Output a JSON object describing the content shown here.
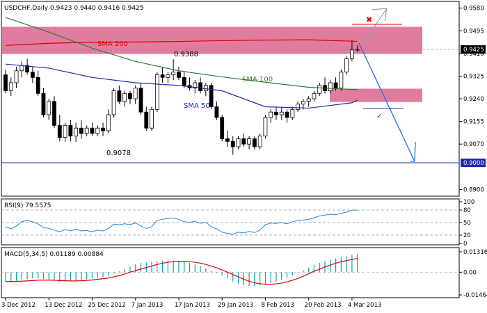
{
  "chart_data": [
    {
      "type": "candlestick",
      "symbol_label": "USDCHF,Daily",
      "ohlc_label": "0.9423 0.9440 0.9416 0.9425",
      "current_price_label": "0.9425",
      "y_ticks": [
        0.89,
        0.8985,
        0.907,
        0.9155,
        0.924,
        0.9325,
        0.941,
        0.9495,
        0.958
      ],
      "y_tick_labels": [
        "0.8900",
        "0.8985",
        "0.9070",
        "0.9155",
        "0.9240",
        "0.9325",
        "0.9410",
        "0.9495",
        "0.9580"
      ],
      "ylim": [
        0.888,
        0.96
      ],
      "x_tick_labels": [
        "3 Dec 2012",
        "13 Dec 2012",
        "25 Dec 2012",
        "7 Jan 2013",
        "17 Jan 2013",
        "29 Jan 2013",
        "8 Feb 2013",
        "20 Feb 2013",
        "4 Mar 2013"
      ],
      "x_tick_index": [
        0,
        8,
        16,
        24,
        32,
        40,
        48,
        56,
        64
      ],
      "candles": [
        [
          0.933,
          0.935,
          0.926,
          0.927
        ],
        [
          0.927,
          0.932,
          0.925,
          0.93
        ],
        [
          0.93,
          0.936,
          0.928,
          0.9345
        ],
        [
          0.9345,
          0.938,
          0.932,
          0.9365
        ],
        [
          0.9365,
          0.939,
          0.933,
          0.934
        ],
        [
          0.934,
          0.936,
          0.93,
          0.932
        ],
        [
          0.932,
          0.9345,
          0.925,
          0.926
        ],
        [
          0.926,
          0.928,
          0.917,
          0.918
        ],
        [
          0.918,
          0.924,
          0.916,
          0.923
        ],
        [
          0.923,
          0.925,
          0.913,
          0.914
        ],
        [
          0.914,
          0.918,
          0.908,
          0.9095
        ],
        [
          0.9095,
          0.915,
          0.908,
          0.914
        ],
        [
          0.914,
          0.916,
          0.908,
          0.91
        ],
        [
          0.91,
          0.915,
          0.9078,
          0.913
        ],
        [
          0.913,
          0.916,
          0.909,
          0.911
        ],
        [
          0.911,
          0.914,
          0.91,
          0.913
        ],
        [
          0.913,
          0.915,
          0.91,
          0.911
        ],
        [
          0.911,
          0.914,
          0.91,
          0.913
        ],
        [
          0.913,
          0.915,
          0.91,
          0.912
        ],
        [
          0.912,
          0.92,
          0.911,
          0.918
        ],
        [
          0.918,
          0.928,
          0.917,
          0.927
        ],
        [
          0.927,
          0.929,
          0.922,
          0.923
        ],
        [
          0.923,
          0.927,
          0.921,
          0.926
        ],
        [
          0.926,
          0.927,
          0.922,
          0.924
        ],
        [
          0.924,
          0.929,
          0.922,
          0.928
        ],
        [
          0.928,
          0.93,
          0.918,
          0.919
        ],
        [
          0.919,
          0.921,
          0.912,
          0.913
        ],
        [
          0.913,
          0.921,
          0.912,
          0.92
        ],
        [
          0.92,
          0.934,
          0.919,
          0.933
        ],
        [
          0.933,
          0.936,
          0.93,
          0.932
        ],
        [
          0.932,
          0.934,
          0.93,
          0.933
        ],
        [
          0.933,
          0.9388,
          0.931,
          0.934
        ],
        [
          0.934,
          0.936,
          0.931,
          0.932
        ],
        [
          0.932,
          0.934,
          0.928,
          0.929
        ],
        [
          0.929,
          0.932,
          0.927,
          0.928
        ],
        [
          0.928,
          0.931,
          0.926,
          0.93
        ],
        [
          0.93,
          0.932,
          0.926,
          0.927
        ],
        [
          0.927,
          0.93,
          0.925,
          0.929
        ],
        [
          0.929,
          0.93,
          0.92,
          0.921
        ],
        [
          0.921,
          0.923,
          0.916,
          0.917
        ],
        [
          0.917,
          0.918,
          0.908,
          0.909
        ],
        [
          0.909,
          0.912,
          0.906,
          0.908
        ],
        [
          0.908,
          0.91,
          0.903,
          0.906
        ],
        [
          0.906,
          0.91,
          0.905,
          0.909
        ],
        [
          0.909,
          0.911,
          0.906,
          0.907
        ],
        [
          0.907,
          0.91,
          0.905,
          0.909
        ],
        [
          0.909,
          0.91,
          0.905,
          0.906
        ],
        [
          0.906,
          0.911,
          0.905,
          0.91
        ],
        [
          0.91,
          0.918,
          0.909,
          0.917
        ],
        [
          0.917,
          0.92,
          0.915,
          0.919
        ],
        [
          0.919,
          0.921,
          0.916,
          0.918
        ],
        [
          0.918,
          0.921,
          0.916,
          0.919
        ],
        [
          0.919,
          0.92,
          0.915,
          0.917
        ],
        [
          0.917,
          0.921,
          0.916,
          0.92
        ],
        [
          0.92,
          0.923,
          0.919,
          0.922
        ],
        [
          0.922,
          0.924,
          0.92,
          0.923
        ],
        [
          0.923,
          0.925,
          0.921,
          0.924
        ],
        [
          0.924,
          0.927,
          0.923,
          0.926
        ],
        [
          0.926,
          0.93,
          0.925,
          0.929
        ],
        [
          0.929,
          0.932,
          0.926,
          0.927
        ],
        [
          0.927,
          0.931,
          0.926,
          0.93
        ],
        [
          0.93,
          0.932,
          0.927,
          0.928
        ],
        [
          0.928,
          0.935,
          0.927,
          0.934
        ],
        [
          0.934,
          0.94,
          0.933,
          0.939
        ],
        [
          0.939,
          0.946,
          0.938,
          0.9423
        ],
        [
          0.9423,
          0.944,
          0.9416,
          0.9425
        ]
      ],
      "series": [
        {
          "name": "SMA 200",
          "color": "#e00000",
          "x": [
            0,
            8,
            16,
            24,
            32,
            40,
            48,
            56,
            64,
            65
          ],
          "values": [
            0.944,
            0.9448,
            0.9452,
            0.9453,
            0.9455,
            0.9458,
            0.946,
            0.9461,
            0.9456,
            0.9455
          ]
        },
        {
          "name": "SMA 100",
          "color": "#2e7d32",
          "x": [
            0,
            8,
            16,
            24,
            32,
            40,
            48,
            56,
            64,
            65
          ],
          "values": [
            0.9545,
            0.949,
            0.943,
            0.938,
            0.9345,
            0.9322,
            0.9302,
            0.9283,
            0.9275,
            0.9275
          ]
        },
        {
          "name": "SMA 50",
          "color": "#1f2aa8",
          "x": [
            0,
            8,
            16,
            24,
            32,
            40,
            48,
            56,
            64,
            65
          ],
          "values": [
            0.937,
            0.9355,
            0.932,
            0.93,
            0.929,
            0.927,
            0.921,
            0.9205,
            0.9225,
            0.9235
          ]
        }
      ],
      "zones": [
        {
          "from": 0.951,
          "to": 0.9408
        },
        {
          "from": 0.9278,
          "to": 0.9228
        }
      ],
      "horizontal_lines": [
        {
          "value": 0.9,
          "label": "0.9000"
        }
      ],
      "annotations": [
        {
          "text": "SMA 200"
        },
        {
          "text": "SMA 100"
        },
        {
          "text": "SMA 50"
        },
        {
          "text": "0.9388"
        },
        {
          "text": "0.9078"
        }
      ],
      "hidden_tick_label": "0.8985"
    },
    {
      "type": "line",
      "label": "RSI(9) 79.5575",
      "y_tick_labels": [
        "100",
        "80",
        "50",
        "20",
        "0"
      ],
      "y_ticks": [
        100,
        80,
        50,
        20,
        0
      ],
      "ylim": [
        0,
        100
      ],
      "levels": [
        80,
        50,
        20
      ],
      "color": "#1e88e5",
      "values": [
        40,
        35,
        42,
        52,
        55,
        52,
        47,
        38,
        36,
        32,
        28,
        33,
        30,
        34,
        30,
        31,
        28,
        32,
        30,
        36,
        46,
        45,
        47,
        45,
        49,
        42,
        36,
        40,
        55,
        58,
        60,
        61,
        58,
        52,
        50,
        53,
        48,
        51,
        40,
        35,
        27,
        24,
        22,
        27,
        25,
        29,
        26,
        32,
        45,
        49,
        48,
        50,
        47,
        52,
        55,
        56,
        58,
        61,
        66,
        68,
        70,
        69,
        72,
        75,
        80,
        79.56
      ]
    },
    {
      "type": "histogram",
      "label": "MACD(5,34,5) 0.01189 0.00884",
      "y_tick_labels": [
        "0.01316",
        "0.00",
        "-0.01464"
      ],
      "y_ticks": [
        0.01316,
        0,
        -0.01464
      ],
      "ylim": [
        -0.01464,
        0.01316
      ],
      "hist_color": "#0aa0b8",
      "signal_color": "#e00000",
      "histogram": [
        -0.006,
        -0.006,
        -0.0055,
        -0.005,
        -0.0045,
        -0.004,
        -0.004,
        -0.0045,
        -0.005,
        -0.0055,
        -0.006,
        -0.006,
        -0.0058,
        -0.0055,
        -0.005,
        -0.0045,
        -0.004,
        -0.0035,
        -0.003,
        -0.0025,
        -0.001,
        0.0005,
        0.002,
        0.0035,
        0.005,
        0.006,
        0.0065,
        0.007,
        0.0072,
        0.0074,
        0.0075,
        0.0074,
        0.0072,
        0.0068,
        0.006,
        0.005,
        0.004,
        0.0025,
        0.001,
        -0.0005,
        -0.002,
        -0.004,
        -0.006,
        -0.0075,
        -0.0085,
        -0.009,
        -0.0088,
        -0.0085,
        -0.008,
        -0.007,
        -0.006,
        -0.005,
        -0.0035,
        -0.002,
        -0.0005,
        0.0012,
        0.003,
        0.0048,
        0.006,
        0.007,
        0.008,
        0.0088,
        0.0095,
        0.0102,
        0.0112,
        0.01189
      ],
      "signal": [
        -0.006,
        -0.006,
        -0.0059,
        -0.0058,
        -0.0056,
        -0.0054,
        -0.0052,
        -0.0051,
        -0.0051,
        -0.0052,
        -0.0054,
        -0.0055,
        -0.0056,
        -0.0056,
        -0.0055,
        -0.0053,
        -0.005,
        -0.0046,
        -0.0042,
        -0.0037,
        -0.003,
        -0.0022,
        -0.0012,
        0,
        0.001,
        0.002,
        0.003,
        0.004,
        0.005,
        0.0058,
        0.0064,
        0.0068,
        0.007,
        0.007,
        0.0068,
        0.0064,
        0.0058,
        0.005,
        0.004,
        0.0028,
        0.0014,
        0,
        -0.0015,
        -0.003,
        -0.0045,
        -0.0058,
        -0.0068,
        -0.0074,
        -0.0078,
        -0.0078,
        -0.0075,
        -0.007,
        -0.0062,
        -0.0052,
        -0.004,
        -0.0026,
        -0.001,
        0.0006,
        0.002,
        0.0034,
        0.0046,
        0.0058,
        0.0068,
        0.0075,
        0.0082,
        0.00884
      ]
    }
  ]
}
